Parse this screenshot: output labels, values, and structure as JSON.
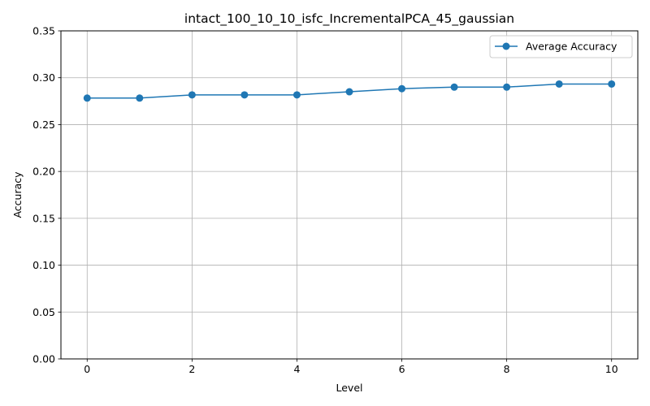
{
  "chart_data": {
    "type": "line",
    "title": "intact_100_10_10_isfc_IncrementalPCA_45_gaussian",
    "xlabel": "Level",
    "ylabel": "Accuracy",
    "xlim": [
      -0.5,
      10.5
    ],
    "ylim": [
      0,
      0.35
    ],
    "xticks": [
      0,
      2,
      4,
      6,
      8,
      10
    ],
    "yticks": [
      0.0,
      0.05,
      0.1,
      0.15,
      0.2,
      0.25,
      0.3,
      0.35
    ],
    "grid": true,
    "legend_position": "top-right",
    "series": [
      {
        "name": "Average Accuracy",
        "color": "#1f77b4",
        "marker": "circle",
        "x": [
          0,
          1,
          2,
          3,
          4,
          5,
          6,
          7,
          8,
          9,
          10
        ],
        "values": [
          0.2783,
          0.2783,
          0.2817,
          0.2817,
          0.2817,
          0.285,
          0.2883,
          0.29,
          0.29,
          0.2933,
          0.2933
        ]
      }
    ]
  }
}
